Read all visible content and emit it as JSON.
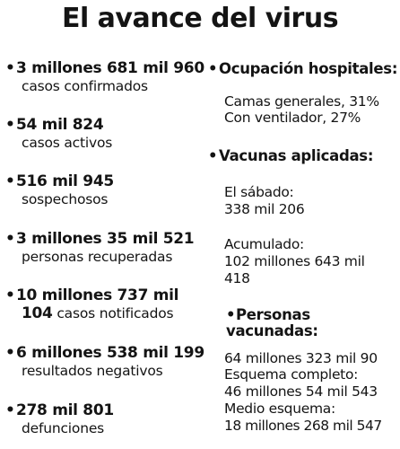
{
  "title": "El avance del virus",
  "left_stats": [
    {
      "bullet": "•",
      "number": "3 millones 681 mil 960",
      "label": "casos confirmados"
    },
    {
      "bullet": "•",
      "number": "54 mil 824",
      "label": "casos activos"
    },
    {
      "bullet": "•",
      "number": "516 mil 945",
      "label": "sospechosos"
    },
    {
      "bullet": "•",
      "number": "3 millones 35 mil 521",
      "label": "personas recuperadas"
    },
    {
      "bullet": "•",
      "number": "10 millones 737 mil",
      "number_cont": "104",
      "label": "casos notificados"
    },
    {
      "bullet": "•",
      "number": "6 millones 538 mil 199",
      "label": "resultados negativos"
    },
    {
      "bullet": "•",
      "number": "278 mil 801",
      "label": "defunciones"
    }
  ],
  "hospitals": {
    "bullet": "•",
    "heading": "Ocupación hospitales:",
    "lines": [
      "Camas generales, 31%",
      "Con ventilador, 27%"
    ]
  },
  "vaccines": {
    "bullet": "•",
    "heading": "Vacunas aplicadas:",
    "saturday_label": "El sábado:",
    "saturday_value": "338 mil 206",
    "accum_label": "Acumulado:",
    "accum_value_1": "102 millones 643 mil",
    "accum_value_2": "418"
  },
  "vaccinated": {
    "bullet": "•",
    "heading_1": "Personas",
    "heading_2": "vacunadas:",
    "lines": [
      "64 millones 323 mil 90",
      "Esquema completo:",
      "46 millones 54 mil 543",
      "Medio esquema:",
      "18 millones 268 mil 547"
    ]
  }
}
